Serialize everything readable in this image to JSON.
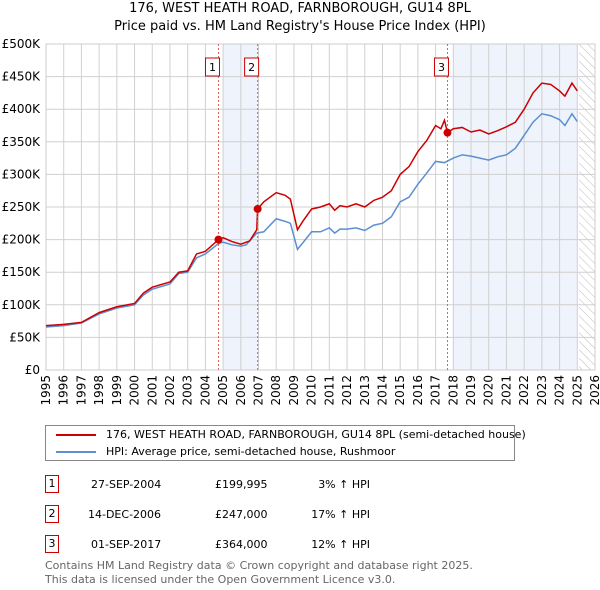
{
  "chart_data": {
    "type": "line",
    "title": "176, WEST HEATH ROAD, FARNBOROUGH, GU14 8PL",
    "subtitle": "Price paid vs. HM Land Registry's House Price Index (HPI)",
    "xlim": [
      1995,
      2026
    ],
    "ylim": [
      0,
      500000
    ],
    "x_ticks": [
      "1995",
      "1996",
      "1997",
      "1998",
      "1999",
      "2000",
      "2001",
      "2002",
      "2003",
      "2004",
      "2005",
      "2006",
      "2007",
      "2008",
      "2009",
      "2010",
      "2011",
      "2012",
      "2013",
      "2014",
      "2015",
      "2016",
      "2017",
      "2018",
      "2019",
      "2020",
      "2021",
      "2022",
      "2023",
      "2024",
      "2025",
      "2026"
    ],
    "y_ticks": [
      {
        "v": 0,
        "label": "£0"
      },
      {
        "v": 50000,
        "label": "£50K"
      },
      {
        "v": 100000,
        "label": "£100K"
      },
      {
        "v": 150000,
        "label": "£150K"
      },
      {
        "v": 200000,
        "label": "£200K"
      },
      {
        "v": 250000,
        "label": "£250K"
      },
      {
        "v": 300000,
        "label": "£300K"
      },
      {
        "v": 350000,
        "label": "£350K"
      },
      {
        "v": 400000,
        "label": "£400K"
      },
      {
        "v": 450000,
        "label": "£450K"
      },
      {
        "v": 500000,
        "label": "£500K"
      }
    ],
    "grid": true,
    "shaded_ranges": [
      [
        2005,
        2006.95
      ],
      [
        2018,
        2025.0
      ]
    ],
    "hatched_range": [
      2025.1,
      2026
    ],
    "series": [
      {
        "name": "176, WEST HEATH ROAD, FARNBOROUGH, GU14 8PL (semi-detached house)",
        "color": "#cc0000",
        "x": [
          1995,
          1996,
          1997,
          1998,
          1999,
          2000,
          2000.5,
          2001,
          2002,
          2002.5,
          2003,
          2003.5,
          2004,
          2004.74,
          2005,
          2005.5,
          2006,
          2006.5,
          2006.9,
          2006.95,
          2007.3,
          2008,
          2008.5,
          2008.8,
          2009.2,
          2009.5,
          2010,
          2010.5,
          2011,
          2011.3,
          2011.6,
          2012,
          2012.5,
          2013,
          2013.5,
          2014,
          2014.5,
          2015,
          2015.5,
          2016,
          2016.5,
          2017,
          2017.3,
          2017.5,
          2017.67,
          2018,
          2018.5,
          2019,
          2019.5,
          2020,
          2020.5,
          2021,
          2021.5,
          2022,
          2022.5,
          2023,
          2023.5,
          2024,
          2024.3,
          2024.7,
          2025
        ],
        "y": [
          68000,
          70000,
          73000,
          88000,
          97000,
          102000,
          118000,
          127000,
          135000,
          150000,
          152000,
          178000,
          182000,
          199995,
          203000,
          197000,
          193000,
          198000,
          215000,
          247000,
          258000,
          272000,
          268000,
          262000,
          215000,
          228000,
          247000,
          250000,
          255000,
          245000,
          252000,
          250000,
          255000,
          250000,
          260000,
          265000,
          275000,
          300000,
          312000,
          335000,
          352000,
          375000,
          370000,
          383000,
          364000,
          370000,
          372000,
          365000,
          368000,
          362000,
          367000,
          373000,
          380000,
          400000,
          425000,
          440000,
          438000,
          428000,
          420000,
          440000,
          428000
        ]
      },
      {
        "name": "HPI: Average price, semi-detached house, Rushmoor",
        "color": "#5b8fd0",
        "x": [
          1995,
          1996,
          1997,
          1998,
          1999,
          2000,
          2000.5,
          2001,
          2002,
          2002.5,
          2003,
          2003.5,
          2004,
          2004.74,
          2005,
          2005.5,
          2006,
          2006.3,
          2006.9,
          2007.3,
          2008,
          2008.5,
          2008.8,
          2009.2,
          2009.5,
          2010,
          2010.5,
          2011,
          2011.3,
          2011.6,
          2012,
          2012.5,
          2013,
          2013.5,
          2014,
          2014.5,
          2015,
          2015.5,
          2016,
          2016.5,
          2017,
          2017.5,
          2018,
          2018.5,
          2019,
          2019.5,
          2020,
          2020.5,
          2021,
          2021.5,
          2022,
          2022.5,
          2023,
          2023.5,
          2024,
          2024.3,
          2024.7,
          2025
        ],
        "y": [
          66000,
          68000,
          72000,
          86000,
          95000,
          100000,
          115000,
          124000,
          132000,
          148000,
          150000,
          172000,
          178000,
          194000,
          196000,
          192000,
          190000,
          192000,
          210000,
          212000,
          232000,
          228000,
          225000,
          185000,
          195000,
          212000,
          212000,
          218000,
          210000,
          216000,
          216000,
          218000,
          214000,
          222000,
          225000,
          235000,
          258000,
          265000,
          285000,
          302000,
          320000,
          318000,
          325000,
          330000,
          328000,
          325000,
          322000,
          327000,
          330000,
          340000,
          360000,
          380000,
          393000,
          390000,
          384000,
          375000,
          393000,
          381000
        ]
      }
    ],
    "sales": [
      {
        "id": "1",
        "x": 2004.74,
        "y": 199995
      },
      {
        "id": "2",
        "x": 2006.95,
        "y": 247000
      },
      {
        "id": "3",
        "x": 2017.67,
        "y": 364000
      }
    ]
  },
  "legend": {
    "property": "176, WEST HEATH ROAD, FARNBOROUGH, GU14 8PL (semi-detached house)",
    "hpi": "HPI: Average price, semi-detached house, Rushmoor"
  },
  "transactions": [
    {
      "id": "1",
      "date": "27-SEP-2004",
      "price": "£199,995",
      "hpi": "3% ↑ HPI"
    },
    {
      "id": "2",
      "date": "14-DEC-2006",
      "price": "£247,000",
      "hpi": "17% ↑ HPI"
    },
    {
      "id": "3",
      "date": "01-SEP-2017",
      "price": "£364,000",
      "hpi": "12% ↑ HPI"
    }
  ],
  "footer": {
    "line1": "Contains HM Land Registry data © Crown copyright and database right 2025.",
    "line2": "This data is licensed under the Open Government Licence v3.0."
  }
}
